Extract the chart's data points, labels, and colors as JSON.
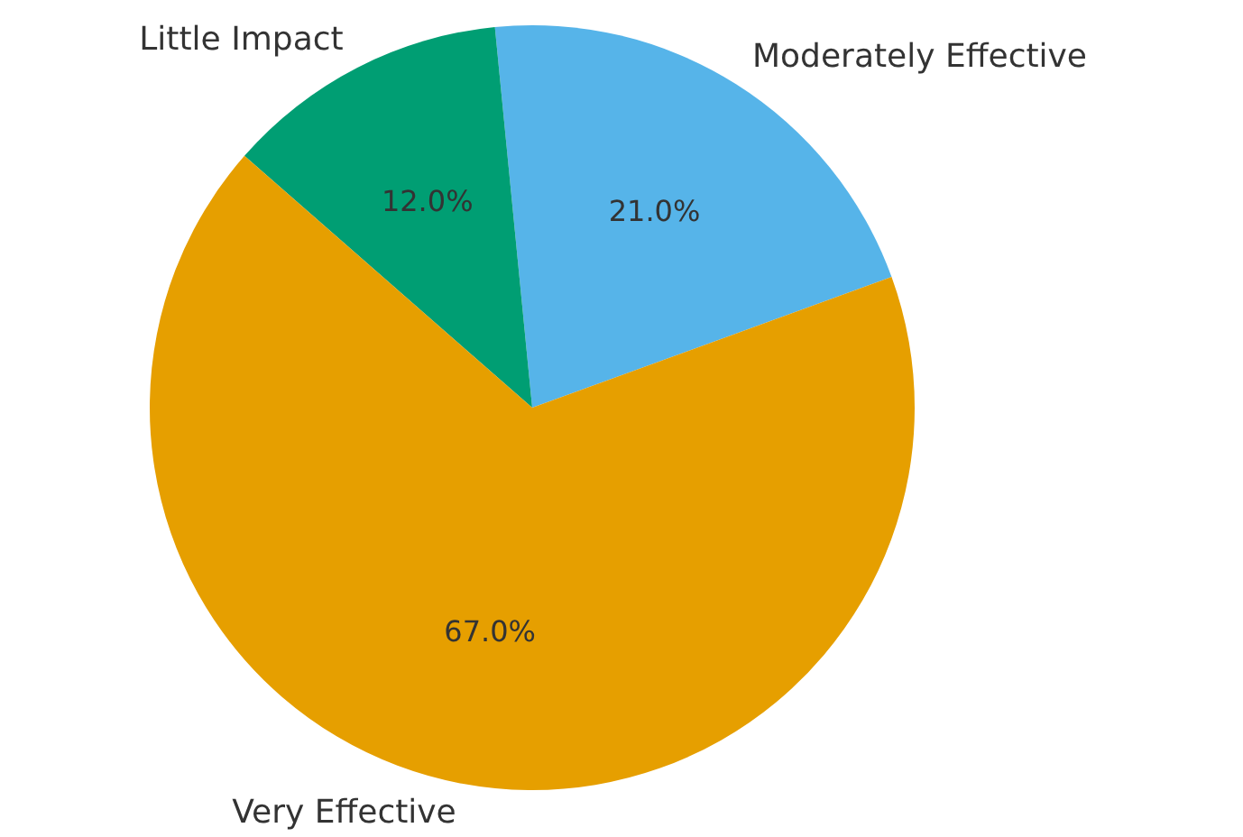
{
  "chart_data": {
    "type": "pie",
    "categories": [
      "Moderately Effective",
      "Little Impact",
      "Very Effective"
    ],
    "values": [
      21.0,
      12.0,
      67.0
    ],
    "colors": [
      "#56b4e9",
      "#009e73",
      "#e69f00"
    ],
    "value_labels": [
      "21.0%",
      "12.0%",
      "67.0%"
    ]
  }
}
